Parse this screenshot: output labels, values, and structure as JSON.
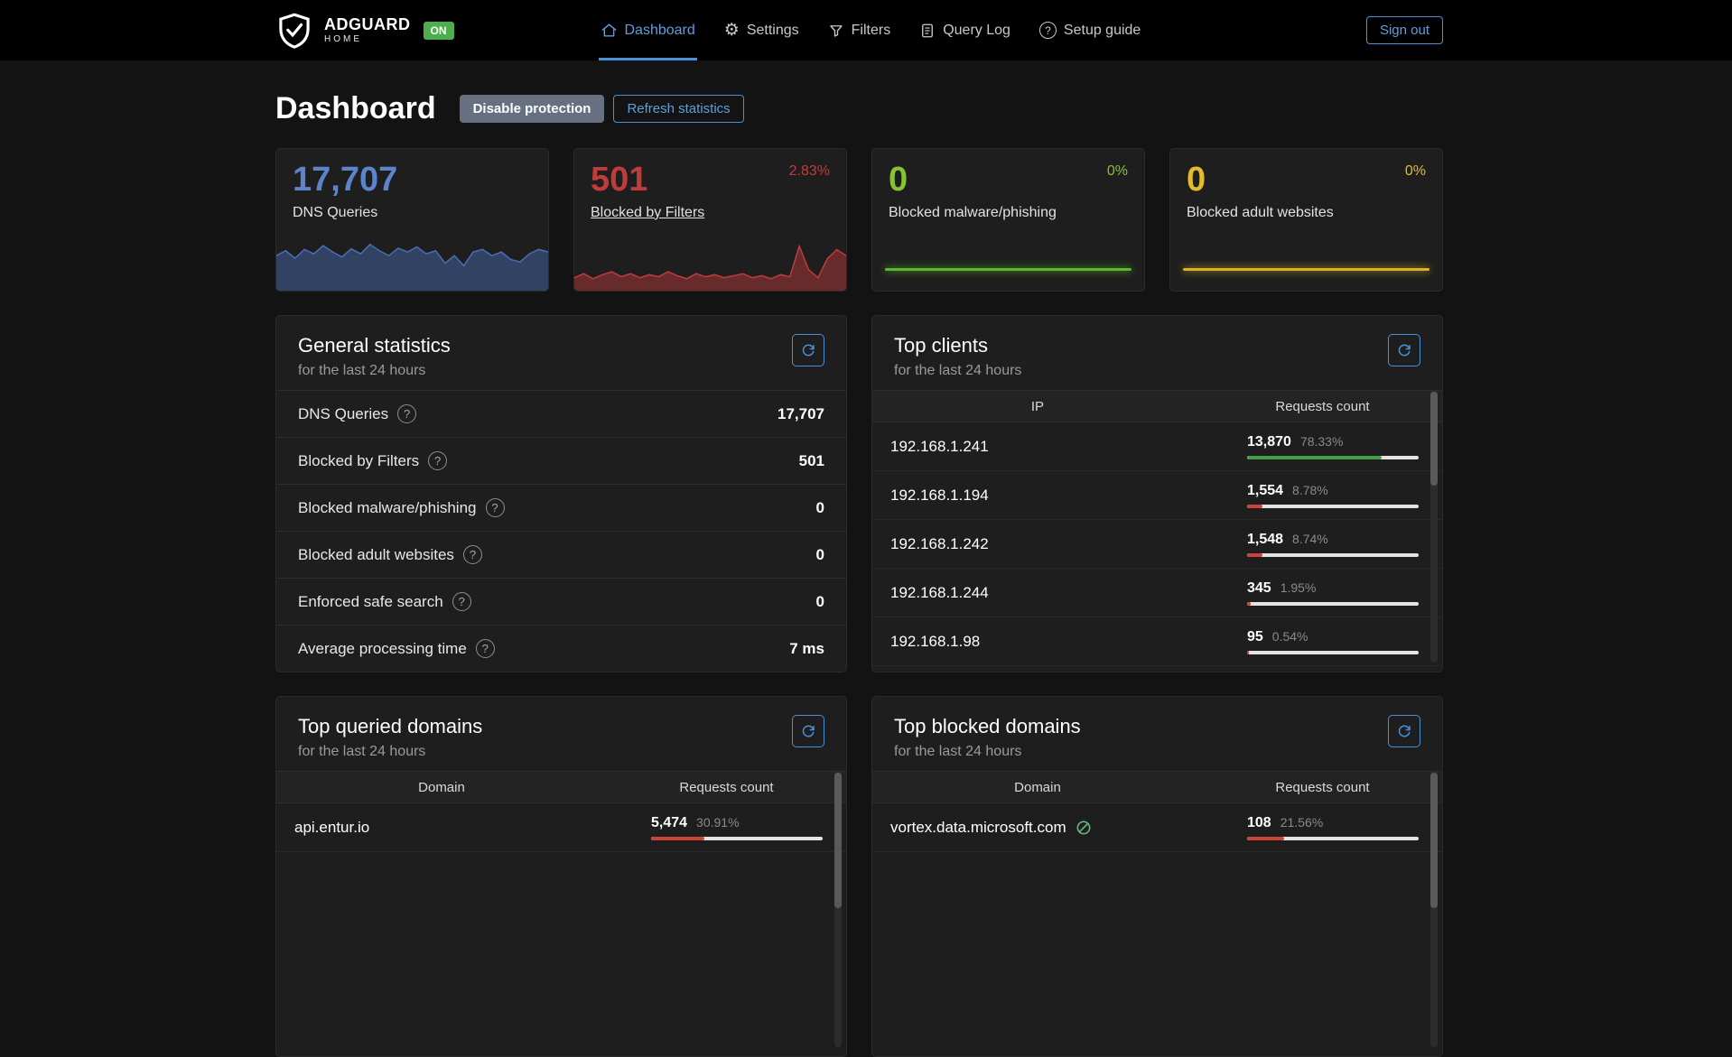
{
  "icons": {
    "gear": "⚙",
    "help": "?"
  },
  "colors": {
    "accent": "#4a90d9",
    "green": "#43a047",
    "red": "#cb4437",
    "on_badge": "#4cae4c"
  },
  "navbar": {
    "brand": "ADGUARD",
    "brand_sub": "HOME",
    "status_badge": "ON",
    "items": [
      {
        "label": "Dashboard"
      },
      {
        "label": "Settings"
      },
      {
        "label": "Filters"
      },
      {
        "label": "Query Log"
      },
      {
        "label": "Setup guide"
      }
    ],
    "signout": "Sign out"
  },
  "page": {
    "title": "Dashboard",
    "disable_protection": "Disable protection",
    "refresh_statistics": "Refresh statistics"
  },
  "stat_cards": [
    {
      "value": "17,707",
      "label": "DNS Queries",
      "number_color": "#5c83cb",
      "chart_color": "#4a6fb5",
      "spark": [
        52,
        60,
        48,
        62,
        55,
        68,
        58,
        50,
        63,
        55,
        70,
        60,
        52,
        64,
        58,
        66,
        55,
        60,
        40,
        52,
        36,
        58,
        62,
        52,
        58,
        46,
        42,
        55,
        62,
        58
      ]
    },
    {
      "value": "501",
      "label": "Blocked by Filters",
      "percent": "2.83%",
      "number_color": "#c13b3b",
      "chart_color": "#c13b3b",
      "spark": [
        22,
        30,
        20,
        28,
        34,
        24,
        30,
        22,
        28,
        24,
        34,
        26,
        20,
        30,
        24,
        28,
        22,
        26,
        30,
        22,
        26,
        20,
        28,
        24,
        85,
        38,
        22,
        60,
        78,
        66
      ]
    },
    {
      "value": "0",
      "label": "Blocked malware/phishing",
      "percent": "0%",
      "number_color": "#86c232",
      "chart_color": "#5db830"
    },
    {
      "value": "0",
      "label": "Blocked adult websites",
      "percent": "0%",
      "number_color": "#e3bb2a",
      "chart_color": "#d9b226"
    }
  ],
  "general_statistics": {
    "title": "General statistics",
    "subtitle": "for the last 24 hours",
    "rows": [
      {
        "label": "DNS Queries",
        "value": "17,707"
      },
      {
        "label": "Blocked by Filters",
        "value": "501"
      },
      {
        "label": "Blocked malware/phishing",
        "value": "0"
      },
      {
        "label": "Blocked adult websites",
        "value": "0"
      },
      {
        "label": "Enforced safe search",
        "value": "0"
      },
      {
        "label": "Average processing time",
        "value": "7 ms"
      }
    ]
  },
  "top_clients": {
    "title": "Top clients",
    "subtitle": "for the last 24 hours",
    "columns": [
      "IP",
      "Requests count"
    ],
    "rows": [
      {
        "ip": "192.168.1.241",
        "count": "13,870",
        "percent": "78.33%",
        "pct": 78.33,
        "color": "green"
      },
      {
        "ip": "192.168.1.194",
        "count": "1,554",
        "percent": "8.78%",
        "pct": 8.78,
        "color": "red"
      },
      {
        "ip": "192.168.1.242",
        "count": "1,548",
        "percent": "8.74%",
        "pct": 8.74,
        "color": "red"
      },
      {
        "ip": "192.168.1.244",
        "count": "345",
        "percent": "1.95%",
        "pct": 1.95,
        "color": "red"
      },
      {
        "ip": "192.168.1.98",
        "count": "95",
        "percent": "0.54%",
        "pct": 0.54,
        "color": "red"
      }
    ]
  },
  "top_queried_domains": {
    "title": "Top queried domains",
    "subtitle": "for the last 24 hours",
    "columns": [
      "Domain",
      "Requests count"
    ],
    "rows": [
      {
        "domain": "api.entur.io",
        "count": "5,474",
        "percent": "30.91%",
        "pct": 30.91,
        "color": "red"
      }
    ]
  },
  "top_blocked_domains": {
    "title": "Top blocked domains",
    "subtitle": "for the last 24 hours",
    "columns": [
      "Domain",
      "Requests count"
    ],
    "rows": [
      {
        "domain": "vortex.data.microsoft.com",
        "count": "108",
        "percent": "21.56%",
        "pct": 21.56,
        "color": "red"
      }
    ]
  }
}
